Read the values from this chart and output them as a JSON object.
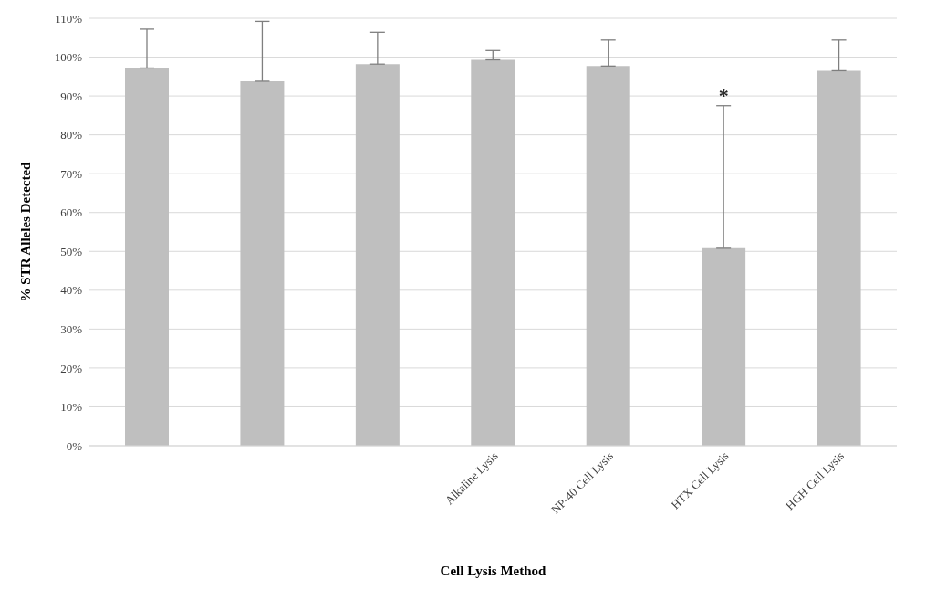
{
  "chart_data": {
    "type": "bar",
    "xlabel": "Cell Lysis Method",
    "ylabel": "% STR Alleles Detected",
    "categories": [
      null,
      null,
      null,
      "Alkaline Lysis",
      "NP-40 Cell Lysis",
      "HTX Cell Lysis",
      "HGH Cell Lysis"
    ],
    "values": [
      97.2,
      93.8,
      98.2,
      99.3,
      97.7,
      50.8,
      96.5
    ],
    "errors": [
      [
        97.2,
        107.2
      ],
      [
        93.8,
        109.2
      ],
      [
        98.2,
        106.4
      ],
      [
        99.3,
        101.7
      ],
      [
        97.7,
        104.4
      ],
      [
        50.8,
        87.5
      ],
      [
        96.5,
        104.4
      ]
    ],
    "color": "#bfbfbf",
    "ylim": [
      0,
      110
    ],
    "yticks": [
      {
        "value": 0,
        "label": "0%"
      },
      {
        "value": 10,
        "label": "10%"
      },
      {
        "value": 20,
        "label": "20%"
      },
      {
        "value": 30,
        "label": "30%"
      },
      {
        "value": 40,
        "label": "40%"
      },
      {
        "value": 50,
        "label": "50%"
      },
      {
        "value": 60,
        "label": "60%"
      },
      {
        "value": 70,
        "label": "70%"
      },
      {
        "value": 80,
        "label": "80%"
      },
      {
        "value": 90,
        "label": "90%"
      },
      {
        "value": 100,
        "label": "100%"
      },
      {
        "value": 110,
        "label": "110%"
      }
    ],
    "grid": "y",
    "annotations": [
      {
        "text": "*",
        "x": "HTX Cell Lysis",
        "y": 87.5
      }
    ]
  }
}
